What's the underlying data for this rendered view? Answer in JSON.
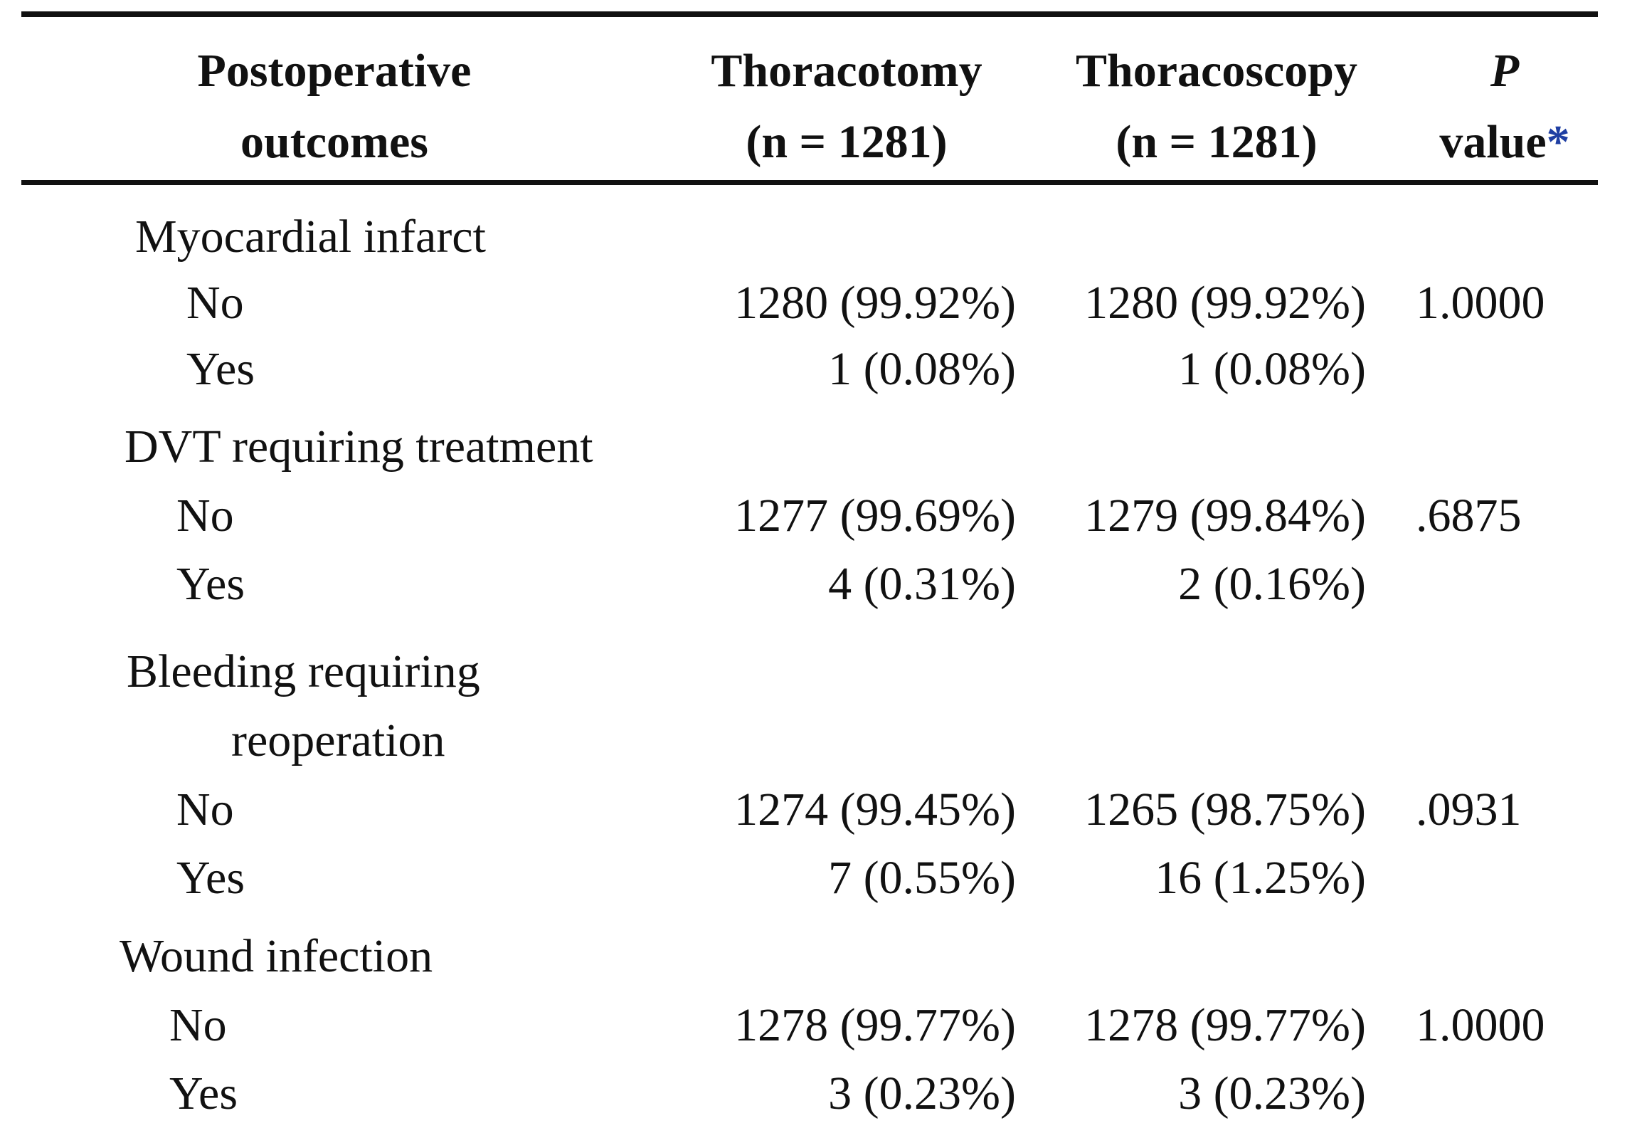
{
  "header": {
    "col_outcome": [
      "Postoperative",
      "outcomes"
    ],
    "col_thoracotomy": [
      "Thoracotomy",
      "(n = 1281)"
    ],
    "col_thoracoscopy": [
      "Thoracoscopy",
      "(n = 1281)"
    ],
    "col_p_italic": "P",
    "col_p_line2": "value",
    "col_p_star": "*"
  },
  "rows": [
    {
      "label": "Myocardial infarct",
      "thoracotomy": "",
      "thoracoscopy": "",
      "p": ""
    },
    {
      "label": "No",
      "thoracotomy": "1280 (99.92%)",
      "thoracoscopy": "1280 (99.92%)",
      "p": "1.0000"
    },
    {
      "label": "Yes",
      "thoracotomy": "1 (0.08%)",
      "thoracoscopy": "1 (0.08%)",
      "p": ""
    },
    {
      "label": "DVT requiring treatment",
      "thoracotomy": "",
      "thoracoscopy": "",
      "p": ""
    },
    {
      "label": "No",
      "thoracotomy": "1277 (99.69%)",
      "thoracoscopy": "1279 (99.84%)",
      "p": ".6875"
    },
    {
      "label": "Yes",
      "thoracotomy": "4 (0.31%)",
      "thoracoscopy": "2 (0.16%)",
      "p": ""
    },
    {
      "label": "Bleeding requiring",
      "thoracotomy": "",
      "thoracoscopy": "",
      "p": ""
    },
    {
      "label": "reoperation",
      "thoracotomy": "",
      "thoracoscopy": "",
      "p": ""
    },
    {
      "label": "No",
      "thoracotomy": "1274 (99.45%)",
      "thoracoscopy": "1265 (98.75%)",
      "p": ".0931"
    },
    {
      "label": "Yes",
      "thoracotomy": "7 (0.55%)",
      "thoracoscopy": "16 (1.25%)",
      "p": ""
    },
    {
      "label": "Wound infection",
      "thoracotomy": "",
      "thoracoscopy": "",
      "p": ""
    },
    {
      "label": "No",
      "thoracotomy": "1278 (99.77%)",
      "thoracoscopy": "1278 (99.77%)",
      "p": "1.0000"
    },
    {
      "label": "Yes",
      "thoracotomy": "3 (0.23%)",
      "thoracoscopy": "3 (0.23%)",
      "p": ""
    }
  ],
  "colors": {
    "text": "#111111",
    "footnote_star": "#1f3fa3",
    "background": "#ffffff"
  }
}
